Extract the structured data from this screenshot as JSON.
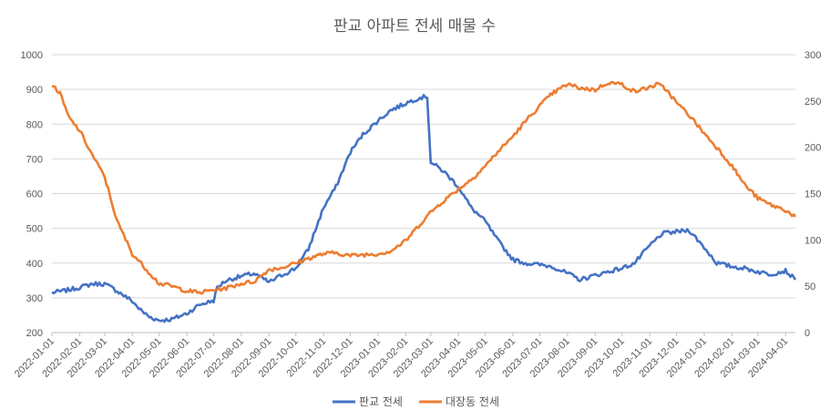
{
  "chart_data": {
    "type": "line",
    "title": "판교 아파트 전세 매물 수",
    "x_tick_labels": [
      "2022-01-01",
      "2022-02-01",
      "2022-03-01",
      "2022-04-01",
      "2022-05-01",
      "2022-06-01",
      "2022-07-01",
      "2022-08-01",
      "2022-09-01",
      "2022-10-01",
      "2022-11-01",
      "2022-12-01",
      "2023-01-01",
      "2023-02-01",
      "2023-03-01",
      "2023-04-01",
      "2023-05-01",
      "2023-06-01",
      "2023-07-01",
      "2023-08-01",
      "2023-09-01",
      "2023-10-01",
      "2023-11-01",
      "2023-12-01",
      "2024-01-01",
      "2024-02-01",
      "2024-03-01",
      "2024-04-01"
    ],
    "xlim": [
      "2022-01-01",
      "2024-04-12"
    ],
    "y_left": {
      "min": 200,
      "max": 1000,
      "ticks": [
        200,
        300,
        400,
        500,
        600,
        700,
        800,
        900,
        1000
      ]
    },
    "y_right": {
      "min": 0,
      "max": 300,
      "ticks": [
        0,
        50,
        100,
        150,
        200,
        250,
        300
      ]
    },
    "grid": true,
    "legend_position": "bottom",
    "series": [
      {
        "name": "판교 전세",
        "axis": "left",
        "color": "#4472C4",
        "x": [
          "2022-01-01",
          "2022-01-15",
          "2022-02-01",
          "2022-02-15",
          "2022-03-01",
          "2022-03-15",
          "2022-04-01",
          "2022-04-10",
          "2022-04-20",
          "2022-05-01",
          "2022-05-15",
          "2022-06-01",
          "2022-06-15",
          "2022-07-01",
          "2022-07-05",
          "2022-07-15",
          "2022-08-01",
          "2022-08-15",
          "2022-09-01",
          "2022-09-15",
          "2022-10-01",
          "2022-10-15",
          "2022-11-01",
          "2022-11-15",
          "2022-12-01",
          "2022-12-15",
          "2023-01-01",
          "2023-01-15",
          "2023-02-01",
          "2023-02-15",
          "2023-02-25",
          "2023-03-01",
          "2023-03-15",
          "2023-04-01",
          "2023-04-15",
          "2023-05-01",
          "2023-05-15",
          "2023-06-01",
          "2023-06-15",
          "2023-07-01",
          "2023-07-15",
          "2023-08-01",
          "2023-08-15",
          "2023-09-01",
          "2023-09-15",
          "2023-10-01",
          "2023-10-15",
          "2023-11-01",
          "2023-11-15",
          "2023-12-01",
          "2023-12-15",
          "2024-01-01",
          "2024-01-15",
          "2024-02-01",
          "2024-02-15",
          "2024-03-01",
          "2024-03-15",
          "2024-04-01",
          "2024-04-12"
        ],
        "values": [
          315,
          320,
          330,
          340,
          340,
          320,
          290,
          265,
          245,
          235,
          238,
          255,
          280,
          292,
          330,
          350,
          362,
          370,
          345,
          365,
          385,
          440,
          560,
          620,
          720,
          770,
          810,
          840,
          860,
          875,
          880,
          690,
          665,
          620,
          560,
          520,
          465,
          410,
          400,
          395,
          390,
          370,
          352,
          365,
          375,
          385,
          400,
          450,
          485,
          490,
          495,
          445,
          400,
          390,
          385,
          375,
          368,
          378,
          352
        ]
      },
      {
        "name": "대장동 전세",
        "axis": "right",
        "color": "#ED7D31",
        "x": [
          "2022-01-01",
          "2022-01-10",
          "2022-01-20",
          "2022-02-01",
          "2022-02-15",
          "2022-03-01",
          "2022-03-15",
          "2022-04-01",
          "2022-04-15",
          "2022-05-01",
          "2022-05-15",
          "2022-06-01",
          "2022-06-15",
          "2022-07-01",
          "2022-07-15",
          "2022-08-01",
          "2022-08-15",
          "2022-09-01",
          "2022-09-15",
          "2022-10-01",
          "2022-10-15",
          "2022-11-01",
          "2022-11-15",
          "2022-12-01",
          "2022-12-15",
          "2023-01-01",
          "2023-01-15",
          "2023-02-01",
          "2023-02-15",
          "2023-03-01",
          "2023-03-15",
          "2023-04-01",
          "2023-04-15",
          "2023-05-01",
          "2023-05-15",
          "2023-06-01",
          "2023-06-15",
          "2023-07-01",
          "2023-07-15",
          "2023-08-01",
          "2023-08-15",
          "2023-09-01",
          "2023-09-15",
          "2023-10-01",
          "2023-10-15",
          "2023-11-01",
          "2023-11-10",
          "2023-11-20",
          "2023-12-01",
          "2023-12-15",
          "2024-01-01",
          "2024-01-15",
          "2024-02-01",
          "2024-02-15",
          "2024-03-01",
          "2024-03-15",
          "2024-04-01",
          "2024-04-12"
        ],
        "values": [
          268,
          258,
          232,
          218,
          192,
          168,
          120,
          85,
          70,
          53,
          50,
          45,
          43,
          46,
          48,
          53,
          55,
          68,
          70,
          75,
          80,
          85,
          86,
          83,
          84,
          85,
          88,
          99,
          115,
          130,
          142,
          155,
          165,
          180,
          195,
          212,
          228,
          245,
          258,
          268,
          264,
          262,
          270,
          268,
          260,
          265,
          268,
          262,
          248,
          235,
          215,
          200,
          180,
          160,
          145,
          138,
          132,
          125
        ]
      }
    ]
  },
  "legend": [
    {
      "label": "판교 전세",
      "color": "#4472C4"
    },
    {
      "label": "대장동 전세",
      "color": "#ED7D31"
    }
  ]
}
